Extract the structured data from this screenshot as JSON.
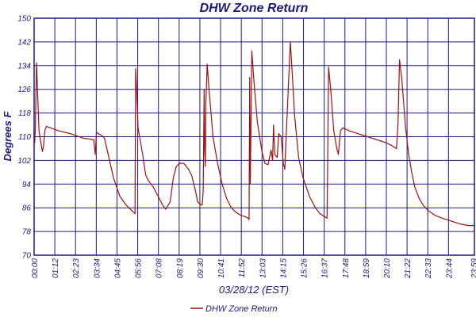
{
  "chart_data": {
    "type": "line",
    "title": "DHW Zone Return",
    "xlabel": "03/28/12 (EST)",
    "ylabel": "Degrees F",
    "ylim": [
      70,
      150
    ],
    "y_ticks": [
      "70",
      "78",
      "86",
      "94",
      "102",
      "110",
      "118",
      "126",
      "134",
      "142",
      "150"
    ],
    "x_ticks": [
      "00:00",
      "01:12",
      "02:23",
      "03:34",
      "04:45",
      "05:56",
      "07:08",
      "08:19",
      "09:30",
      "10:41",
      "11:52",
      "13:03",
      "14:15",
      "15:26",
      "16:37",
      "17:48",
      "18:59",
      "20:10",
      "21:22",
      "22:33",
      "23:44",
      "23:59"
    ],
    "grid": true,
    "legend_position": "bottom-center",
    "series": [
      {
        "name": "DHW Zone Return",
        "color": "#a01010",
        "points": [
          [
            "00:00",
            108
          ],
          [
            "00:02",
            108
          ],
          [
            "00:04",
            113
          ],
          [
            "00:08",
            135
          ],
          [
            "00:11",
            126
          ],
          [
            "00:16",
            112
          ],
          [
            "00:22",
            108
          ],
          [
            "00:27",
            105
          ],
          [
            "00:31",
            107
          ],
          [
            "00:35",
            112
          ],
          [
            "00:40",
            113.5
          ],
          [
            "01:20",
            112
          ],
          [
            "02:00",
            111
          ],
          [
            "02:40",
            109.5
          ],
          [
            "03:15",
            109
          ],
          [
            "03:18",
            106
          ],
          [
            "03:20",
            104
          ],
          [
            "03:24",
            111.5
          ],
          [
            "03:30",
            111
          ],
          [
            "03:40",
            110.5
          ],
          [
            "03:50",
            109.5
          ],
          [
            "04:00",
            105
          ],
          [
            "04:20",
            96
          ],
          [
            "04:40",
            90
          ],
          [
            "05:00",
            87
          ],
          [
            "05:20",
            85
          ],
          [
            "05:30",
            84
          ],
          [
            "05:32",
            133
          ],
          [
            "05:34",
            129
          ],
          [
            "05:40",
            113
          ],
          [
            "05:55",
            104
          ],
          [
            "06:05",
            97
          ],
          [
            "06:15",
            95
          ],
          [
            "06:30",
            93
          ],
          [
            "06:45",
            90
          ],
          [
            "07:00",
            87
          ],
          [
            "07:10",
            85.5
          ],
          [
            "07:25",
            88
          ],
          [
            "07:35",
            96
          ],
          [
            "07:45",
            100
          ],
          [
            "07:55",
            101
          ],
          [
            "08:10",
            101
          ],
          [
            "08:25",
            99
          ],
          [
            "08:35",
            97
          ],
          [
            "08:45",
            93
          ],
          [
            "08:55",
            88
          ],
          [
            "09:05",
            87
          ],
          [
            "09:10",
            87
          ],
          [
            "09:13",
            92
          ],
          [
            "09:16",
            126
          ],
          [
            "09:18",
            105
          ],
          [
            "09:20",
            100
          ],
          [
            "09:22",
            122
          ],
          [
            "09:26",
            134.5
          ],
          [
            "09:32",
            126
          ],
          [
            "09:45",
            110
          ],
          [
            "10:00",
            101
          ],
          [
            "10:15",
            94
          ],
          [
            "10:30",
            89
          ],
          [
            "10:45",
            86
          ],
          [
            "11:00",
            84.5
          ],
          [
            "11:15",
            83.5
          ],
          [
            "11:30",
            83
          ],
          [
            "11:40",
            82.5
          ],
          [
            "11:43",
            82
          ],
          [
            "11:45",
            130
          ],
          [
            "11:47",
            94
          ],
          [
            "11:52",
            139
          ],
          [
            "11:58",
            130
          ],
          [
            "12:10",
            115
          ],
          [
            "12:25",
            105
          ],
          [
            "12:35",
            101
          ],
          [
            "12:45",
            100.5
          ],
          [
            "12:55",
            105.5
          ],
          [
            "13:00",
            102
          ],
          [
            "13:03",
            114
          ],
          [
            "13:07",
            104
          ],
          [
            "13:15",
            103
          ],
          [
            "13:20",
            111
          ],
          [
            "13:28",
            110
          ],
          [
            "13:35",
            101
          ],
          [
            "13:40",
            99
          ],
          [
            "13:45",
            112
          ],
          [
            "13:52",
            128
          ],
          [
            "13:58",
            142
          ],
          [
            "14:05",
            130
          ],
          [
            "14:12",
            117
          ],
          [
            "14:25",
            103
          ],
          [
            "14:40",
            96
          ],
          [
            "15:00",
            90
          ],
          [
            "15:20",
            86
          ],
          [
            "15:35",
            84
          ],
          [
            "15:50",
            83
          ],
          [
            "15:58",
            82.5
          ],
          [
            "16:00",
            100
          ],
          [
            "16:03",
            133.5
          ],
          [
            "16:10",
            126
          ],
          [
            "16:20",
            112
          ],
          [
            "16:30",
            106
          ],
          [
            "16:35",
            104
          ],
          [
            "16:42",
            112
          ],
          [
            "16:50",
            113
          ],
          [
            "17:10",
            112
          ],
          [
            "17:40",
            111
          ],
          [
            "18:10",
            110
          ],
          [
            "18:40",
            109
          ],
          [
            "19:10",
            108
          ],
          [
            "19:30",
            107
          ],
          [
            "19:45",
            106
          ],
          [
            "19:50",
            114
          ],
          [
            "19:55",
            136
          ],
          [
            "20:02",
            130
          ],
          [
            "20:15",
            113
          ],
          [
            "20:25",
            104
          ],
          [
            "20:35",
            98
          ],
          [
            "20:45",
            93
          ],
          [
            "21:00",
            89
          ],
          [
            "21:15",
            86.5
          ],
          [
            "21:30",
            85
          ],
          [
            "21:50",
            83.5
          ],
          [
            "22:15",
            82.5
          ],
          [
            "22:45",
            81.5
          ],
          [
            "23:15",
            80.5
          ],
          [
            "23:40",
            80
          ],
          [
            "23:59",
            80
          ]
        ]
      }
    ]
  }
}
